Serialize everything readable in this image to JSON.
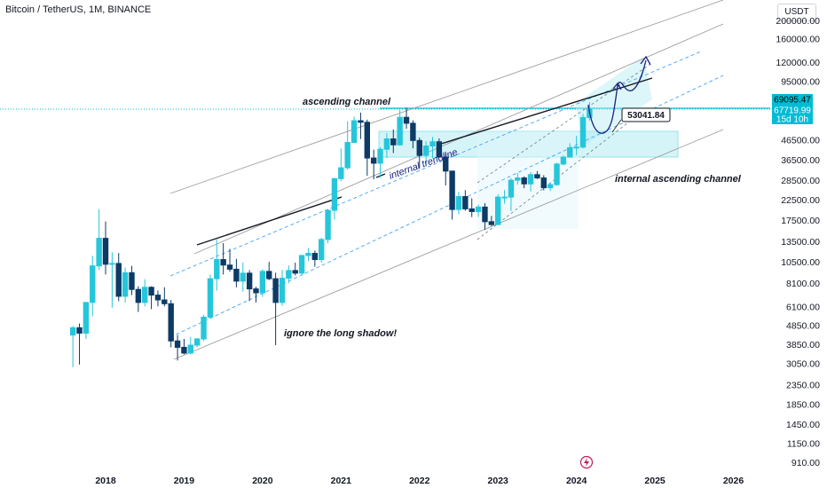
{
  "header": {
    "title": "Bitcoin / TetherUS, 1M, BINANCE",
    "currency": "USDT"
  },
  "colors": {
    "up": "#26c6da",
    "down": "#0d3b66",
    "channel": "#9e9e9e",
    "dashed": "#42a5f5",
    "zone": "#b2ebf2",
    "price_line": "#00bcd4",
    "curve": "#1a237e"
  },
  "chart_data": {
    "type": "candlestick",
    "y_scale": "log",
    "y_ticks": [
      "200000.00",
      "160000.00",
      "120000.00",
      "95000.00",
      "69095.47",
      "67719.99",
      "15d 10h",
      "46500.00",
      "36500.00",
      "28500.00",
      "22500.00",
      "17500.00",
      "13500.00",
      "10500.00",
      "8100.00",
      "6100.00",
      "4850.00",
      "3850.00",
      "3050.00",
      "2350.00",
      "1850.00",
      "1450.00",
      "1150.00",
      "910.00"
    ],
    "x_ticks": [
      "2018",
      "2019",
      "2020",
      "2021",
      "2022",
      "2023",
      "2024",
      "2025",
      "2026"
    ],
    "price_labels": {
      "high": "69095.47",
      "current": "67719.99",
      "countdown": "15d 10h",
      "target": "53041.84"
    },
    "annotations": {
      "ascending_channel": "ascending channel",
      "internal_trendline": "internal trendline",
      "internal_ascending_channel": "internal ascending channel",
      "ignore_shadow": "ignore the long shadow!"
    },
    "candles": [
      {
        "date": "2017-08",
        "o": 4300,
        "h": 4800,
        "l": 2900,
        "c": 4700
      },
      {
        "date": "2017-09",
        "o": 4700,
        "h": 4950,
        "l": 3000,
        "c": 4400
      },
      {
        "date": "2017-10",
        "o": 4400,
        "h": 6400,
        "l": 4100,
        "c": 6400
      },
      {
        "date": "2017-11",
        "o": 6400,
        "h": 11300,
        "l": 5400,
        "c": 10000
      },
      {
        "date": "2017-12",
        "o": 10000,
        "h": 20000,
        "l": 9500,
        "c": 14000
      },
      {
        "date": "2018-01",
        "o": 14000,
        "h": 17200,
        "l": 9000,
        "c": 10200
      },
      {
        "date": "2018-02",
        "o": 10200,
        "h": 11800,
        "l": 6000,
        "c": 10300
      },
      {
        "date": "2018-03",
        "o": 10300,
        "h": 11700,
        "l": 6500,
        "c": 6900
      },
      {
        "date": "2018-04",
        "o": 6900,
        "h": 9800,
        "l": 6400,
        "c": 9200
      },
      {
        "date": "2018-05",
        "o": 9200,
        "h": 10000,
        "l": 7000,
        "c": 7500
      },
      {
        "date": "2018-06",
        "o": 7500,
        "h": 7800,
        "l": 5700,
        "c": 6400
      },
      {
        "date": "2018-07",
        "o": 6400,
        "h": 8500,
        "l": 6100,
        "c": 7700
      },
      {
        "date": "2018-08",
        "o": 7700,
        "h": 7800,
        "l": 5900,
        "c": 7000
      },
      {
        "date": "2018-09",
        "o": 7000,
        "h": 7400,
        "l": 6100,
        "c": 6600
      },
      {
        "date": "2018-10",
        "o": 6600,
        "h": 7700,
        "l": 6100,
        "c": 6300
      },
      {
        "date": "2018-11",
        "o": 6300,
        "h": 6600,
        "l": 3700,
        "c": 4000
      },
      {
        "date": "2018-12",
        "o": 4000,
        "h": 4300,
        "l": 3150,
        "c": 3700
      },
      {
        "date": "2019-01",
        "o": 3700,
        "h": 4100,
        "l": 3400,
        "c": 3450
      },
      {
        "date": "2019-02",
        "o": 3450,
        "h": 4200,
        "l": 3400,
        "c": 3800
      },
      {
        "date": "2019-03",
        "o": 3800,
        "h": 4150,
        "l": 3700,
        "c": 4100
      },
      {
        "date": "2019-04",
        "o": 4100,
        "h": 5500,
        "l": 4000,
        "c": 5350
      },
      {
        "date": "2019-05",
        "o": 5350,
        "h": 9000,
        "l": 5300,
        "c": 8550
      },
      {
        "date": "2019-06",
        "o": 8550,
        "h": 13800,
        "l": 7400,
        "c": 10800
      },
      {
        "date": "2019-07",
        "o": 10800,
        "h": 13200,
        "l": 9000,
        "c": 10100
      },
      {
        "date": "2019-08",
        "o": 10100,
        "h": 12300,
        "l": 9300,
        "c": 9600
      },
      {
        "date": "2019-09",
        "o": 9600,
        "h": 10900,
        "l": 7700,
        "c": 8300
      },
      {
        "date": "2019-10",
        "o": 8300,
        "h": 10400,
        "l": 7300,
        "c": 9150
      },
      {
        "date": "2019-11",
        "o": 9150,
        "h": 9500,
        "l": 6500,
        "c": 7550
      },
      {
        "date": "2019-12",
        "o": 7550,
        "h": 7750,
        "l": 6400,
        "c": 7200
      },
      {
        "date": "2020-01",
        "o": 7200,
        "h": 9600,
        "l": 6850,
        "c": 9350
      },
      {
        "date": "2020-02",
        "o": 9350,
        "h": 10500,
        "l": 8400,
        "c": 8550
      },
      {
        "date": "2020-03",
        "o": 8550,
        "h": 9200,
        "l": 3800,
        "c": 6400
      },
      {
        "date": "2020-04",
        "o": 6400,
        "h": 9500,
        "l": 6150,
        "c": 8600
      },
      {
        "date": "2020-05",
        "o": 8600,
        "h": 10050,
        "l": 8100,
        "c": 9450
      },
      {
        "date": "2020-06",
        "o": 9450,
        "h": 10400,
        "l": 8900,
        "c": 9150
      },
      {
        "date": "2020-07",
        "o": 9150,
        "h": 11450,
        "l": 8900,
        "c": 11350
      },
      {
        "date": "2020-08",
        "o": 11350,
        "h": 12450,
        "l": 10600,
        "c": 11650
      },
      {
        "date": "2020-09",
        "o": 11650,
        "h": 12050,
        "l": 9900,
        "c": 10800
      },
      {
        "date": "2020-10",
        "o": 10800,
        "h": 14100,
        "l": 10400,
        "c": 13800
      },
      {
        "date": "2020-11",
        "o": 13800,
        "h": 19900,
        "l": 13200,
        "c": 19700
      },
      {
        "date": "2020-12",
        "o": 19700,
        "h": 29300,
        "l": 17600,
        "c": 29000
      },
      {
        "date": "2021-01",
        "o": 29000,
        "h": 41900,
        "l": 28100,
        "c": 33100
      },
      {
        "date": "2021-02",
        "o": 33100,
        "h": 58400,
        "l": 32300,
        "c": 45100
      },
      {
        "date": "2021-03",
        "o": 45100,
        "h": 61800,
        "l": 45000,
        "c": 58800
      },
      {
        "date": "2021-04",
        "o": 58800,
        "h": 64900,
        "l": 47000,
        "c": 57700
      },
      {
        "date": "2021-05",
        "o": 57700,
        "h": 59600,
        "l": 30000,
        "c": 37300
      },
      {
        "date": "2021-06",
        "o": 37300,
        "h": 41300,
        "l": 28800,
        "c": 35000
      },
      {
        "date": "2021-07",
        "o": 35000,
        "h": 42600,
        "l": 29300,
        "c": 41500
      },
      {
        "date": "2021-08",
        "o": 41500,
        "h": 50500,
        "l": 37300,
        "c": 47100
      },
      {
        "date": "2021-09",
        "o": 47100,
        "h": 52900,
        "l": 39600,
        "c": 43800
      },
      {
        "date": "2021-10",
        "o": 43800,
        "h": 67000,
        "l": 43300,
        "c": 61300
      },
      {
        "date": "2021-11",
        "o": 61300,
        "h": 69000,
        "l": 53300,
        "c": 57000
      },
      {
        "date": "2021-12",
        "o": 57000,
        "h": 59100,
        "l": 42000,
        "c": 46200
      },
      {
        "date": "2022-01",
        "o": 46200,
        "h": 47900,
        "l": 32900,
        "c": 38500
      },
      {
        "date": "2022-02",
        "o": 38500,
        "h": 45800,
        "l": 34300,
        "c": 43200
      },
      {
        "date": "2022-03",
        "o": 43200,
        "h": 48200,
        "l": 37200,
        "c": 45500
      },
      {
        "date": "2022-04",
        "o": 45500,
        "h": 47400,
        "l": 37700,
        "c": 37700
      },
      {
        "date": "2022-05",
        "o": 37700,
        "h": 40000,
        "l": 26700,
        "c": 31800
      },
      {
        "date": "2022-06",
        "o": 31800,
        "h": 31900,
        "l": 17600,
        "c": 19900
      },
      {
        "date": "2022-07",
        "o": 19900,
        "h": 24700,
        "l": 18800,
        "c": 23300
      },
      {
        "date": "2022-08",
        "o": 23300,
        "h": 25200,
        "l": 19600,
        "c": 20050
      },
      {
        "date": "2022-09",
        "o": 20050,
        "h": 22800,
        "l": 18150,
        "c": 19400
      },
      {
        "date": "2022-10",
        "o": 19400,
        "h": 21100,
        "l": 18200,
        "c": 20500
      },
      {
        "date": "2022-11",
        "o": 20500,
        "h": 21500,
        "l": 15500,
        "c": 17150
      },
      {
        "date": "2022-12",
        "o": 17150,
        "h": 18400,
        "l": 16300,
        "c": 16550
      },
      {
        "date": "2023-01",
        "o": 16550,
        "h": 23950,
        "l": 16500,
        "c": 23150
      },
      {
        "date": "2023-02",
        "o": 23150,
        "h": 25250,
        "l": 21350,
        "c": 23150
      },
      {
        "date": "2023-03",
        "o": 23150,
        "h": 29200,
        "l": 19550,
        "c": 28450
      },
      {
        "date": "2023-04",
        "o": 28450,
        "h": 31050,
        "l": 26950,
        "c": 29250
      },
      {
        "date": "2023-05",
        "o": 29250,
        "h": 29800,
        "l": 25800,
        "c": 27200
      },
      {
        "date": "2023-06",
        "o": 27200,
        "h": 31400,
        "l": 24800,
        "c": 30450
      },
      {
        "date": "2023-07",
        "o": 30450,
        "h": 31800,
        "l": 28850,
        "c": 29250
      },
      {
        "date": "2023-08",
        "o": 29250,
        "h": 30250,
        "l": 25150,
        "c": 25950
      },
      {
        "date": "2023-09",
        "o": 25950,
        "h": 27450,
        "l": 24900,
        "c": 26950
      },
      {
        "date": "2023-10",
        "o": 26950,
        "h": 35200,
        "l": 26550,
        "c": 34650
      },
      {
        "date": "2023-11",
        "o": 34650,
        "h": 38400,
        "l": 34100,
        "c": 37700
      },
      {
        "date": "2023-12",
        "o": 37700,
        "h": 44700,
        "l": 37600,
        "c": 42300
      },
      {
        "date": "2024-01",
        "o": 42300,
        "h": 48950,
        "l": 38550,
        "c": 42600
      },
      {
        "date": "2024-02",
        "o": 42600,
        "h": 63900,
        "l": 41900,
        "c": 61150
      },
      {
        "date": "2024-03",
        "o": 61150,
        "h": 73800,
        "l": 59000,
        "c": 67700
      }
    ]
  }
}
